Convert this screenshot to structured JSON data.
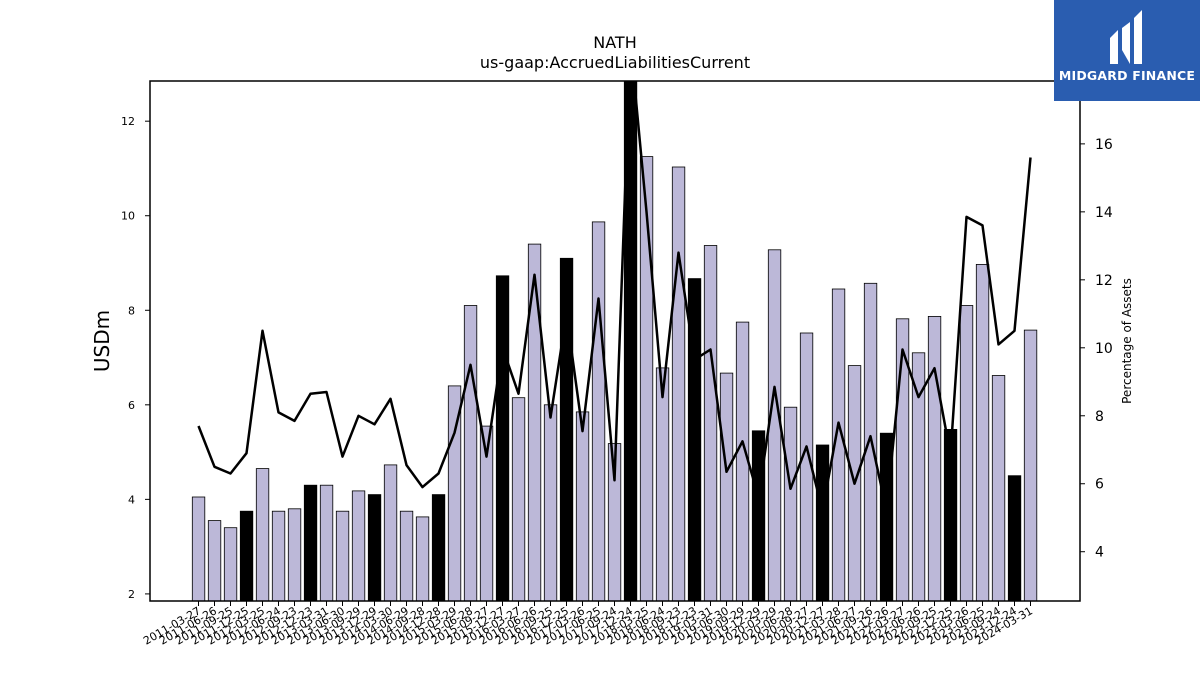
{
  "chart_data": {
    "type": "bar+line",
    "title": "NATH",
    "subtitle": "us-gaap:AccruedLiabilitiesCurrent",
    "ylabel": "USDm",
    "y2label": "Percentage of Assets",
    "ylim": [
      1.85,
      12.85
    ],
    "y2lim": [
      2.55,
      17.85
    ],
    "yticks": [
      2,
      4,
      6,
      8,
      10,
      12
    ],
    "y2ticks": [
      4,
      6,
      8,
      10,
      12,
      14,
      16
    ],
    "bar_color": "#bcb8d8",
    "highlight_color": "#000000",
    "line_color": "#000000",
    "categories": [
      "2011-03-27",
      "2011-06-26",
      "2011-09-25",
      "2011-12-25",
      "2012-03-25",
      "2012-06-24",
      "2012-09-23",
      "2012-12-23",
      "2013-03-31",
      "2013-06-30",
      "2013-09-29",
      "2013-12-29",
      "2014-03-30",
      "2014-06-29",
      "2014-09-28",
      "2014-12-28",
      "2015-03-29",
      "2015-06-28",
      "2015-09-27",
      "2015-12-27",
      "2016-03-27",
      "2016-06-26",
      "2016-09-25",
      "2016-12-25",
      "2017-03-26",
      "2017-06-25",
      "2017-09-24",
      "2017-12-24",
      "2018-03-25",
      "2018-06-24",
      "2018-09-23",
      "2018-12-23",
      "2019-03-31",
      "2019-06-30",
      "2019-09-29",
      "2019-12-29",
      "2020-03-29",
      "2020-06-28",
      "2020-09-27",
      "2020-12-27",
      "2021-03-28",
      "2021-06-27",
      "2021-09-26",
      "2021-12-26",
      "2022-03-27",
      "2022-06-26",
      "2022-09-25",
      "2022-12-25",
      "2023-03-26",
      "2023-06-25",
      "2023-09-24",
      "2023-12-24",
      "2024-03-31"
    ],
    "values": [
      4.05,
      3.55,
      3.4,
      3.75,
      4.65,
      3.75,
      3.8,
      4.3,
      4.3,
      3.75,
      4.18,
      4.1,
      4.73,
      3.75,
      3.63,
      4.1,
      6.4,
      8.1,
      5.55,
      8.73,
      6.15,
      9.4,
      6.0,
      9.1,
      5.85,
      9.87,
      5.18,
      12.85,
      11.25,
      6.78,
      11.03,
      8.67,
      9.37,
      6.67,
      7.75,
      5.45,
      9.28,
      5.95,
      7.52,
      5.15,
      8.45,
      6.83,
      8.57,
      5.4,
      7.82,
      7.1,
      7.87,
      5.48,
      8.1,
      8.97,
      6.62,
      4.5,
      7.58
    ],
    "highlight": [
      false,
      false,
      false,
      true,
      false,
      false,
      false,
      true,
      false,
      false,
      false,
      true,
      false,
      false,
      false,
      true,
      false,
      false,
      false,
      true,
      false,
      false,
      false,
      true,
      false,
      false,
      false,
      true,
      false,
      false,
      false,
      true,
      false,
      false,
      false,
      true,
      false,
      false,
      false,
      true,
      false,
      false,
      false,
      true,
      false,
      false,
      false,
      true,
      false,
      false,
      false,
      true,
      false
    ],
    "pct_of_assets": [
      7.7,
      6.5,
      6.3,
      6.9,
      10.5,
      8.1,
      7.85,
      8.65,
      8.7,
      6.8,
      8.0,
      7.75,
      8.5,
      6.55,
      5.9,
      6.3,
      7.5,
      9.5,
      6.8,
      10.0,
      8.65,
      12.15,
      7.95,
      11.0,
      7.55,
      11.45,
      6.1,
      19.0,
      14.0,
      8.55,
      12.8,
      9.65,
      9.95,
      6.35,
      7.25,
      5.6,
      8.85,
      5.85,
      7.1,
      5.2,
      7.8,
      6.0,
      7.4,
      5.2,
      9.95,
      8.55,
      9.4,
      6.85,
      13.85,
      13.6,
      10.1,
      10.5,
      15.6
    ]
  },
  "logo": {
    "text": "MIDGARD FINANCE"
  }
}
